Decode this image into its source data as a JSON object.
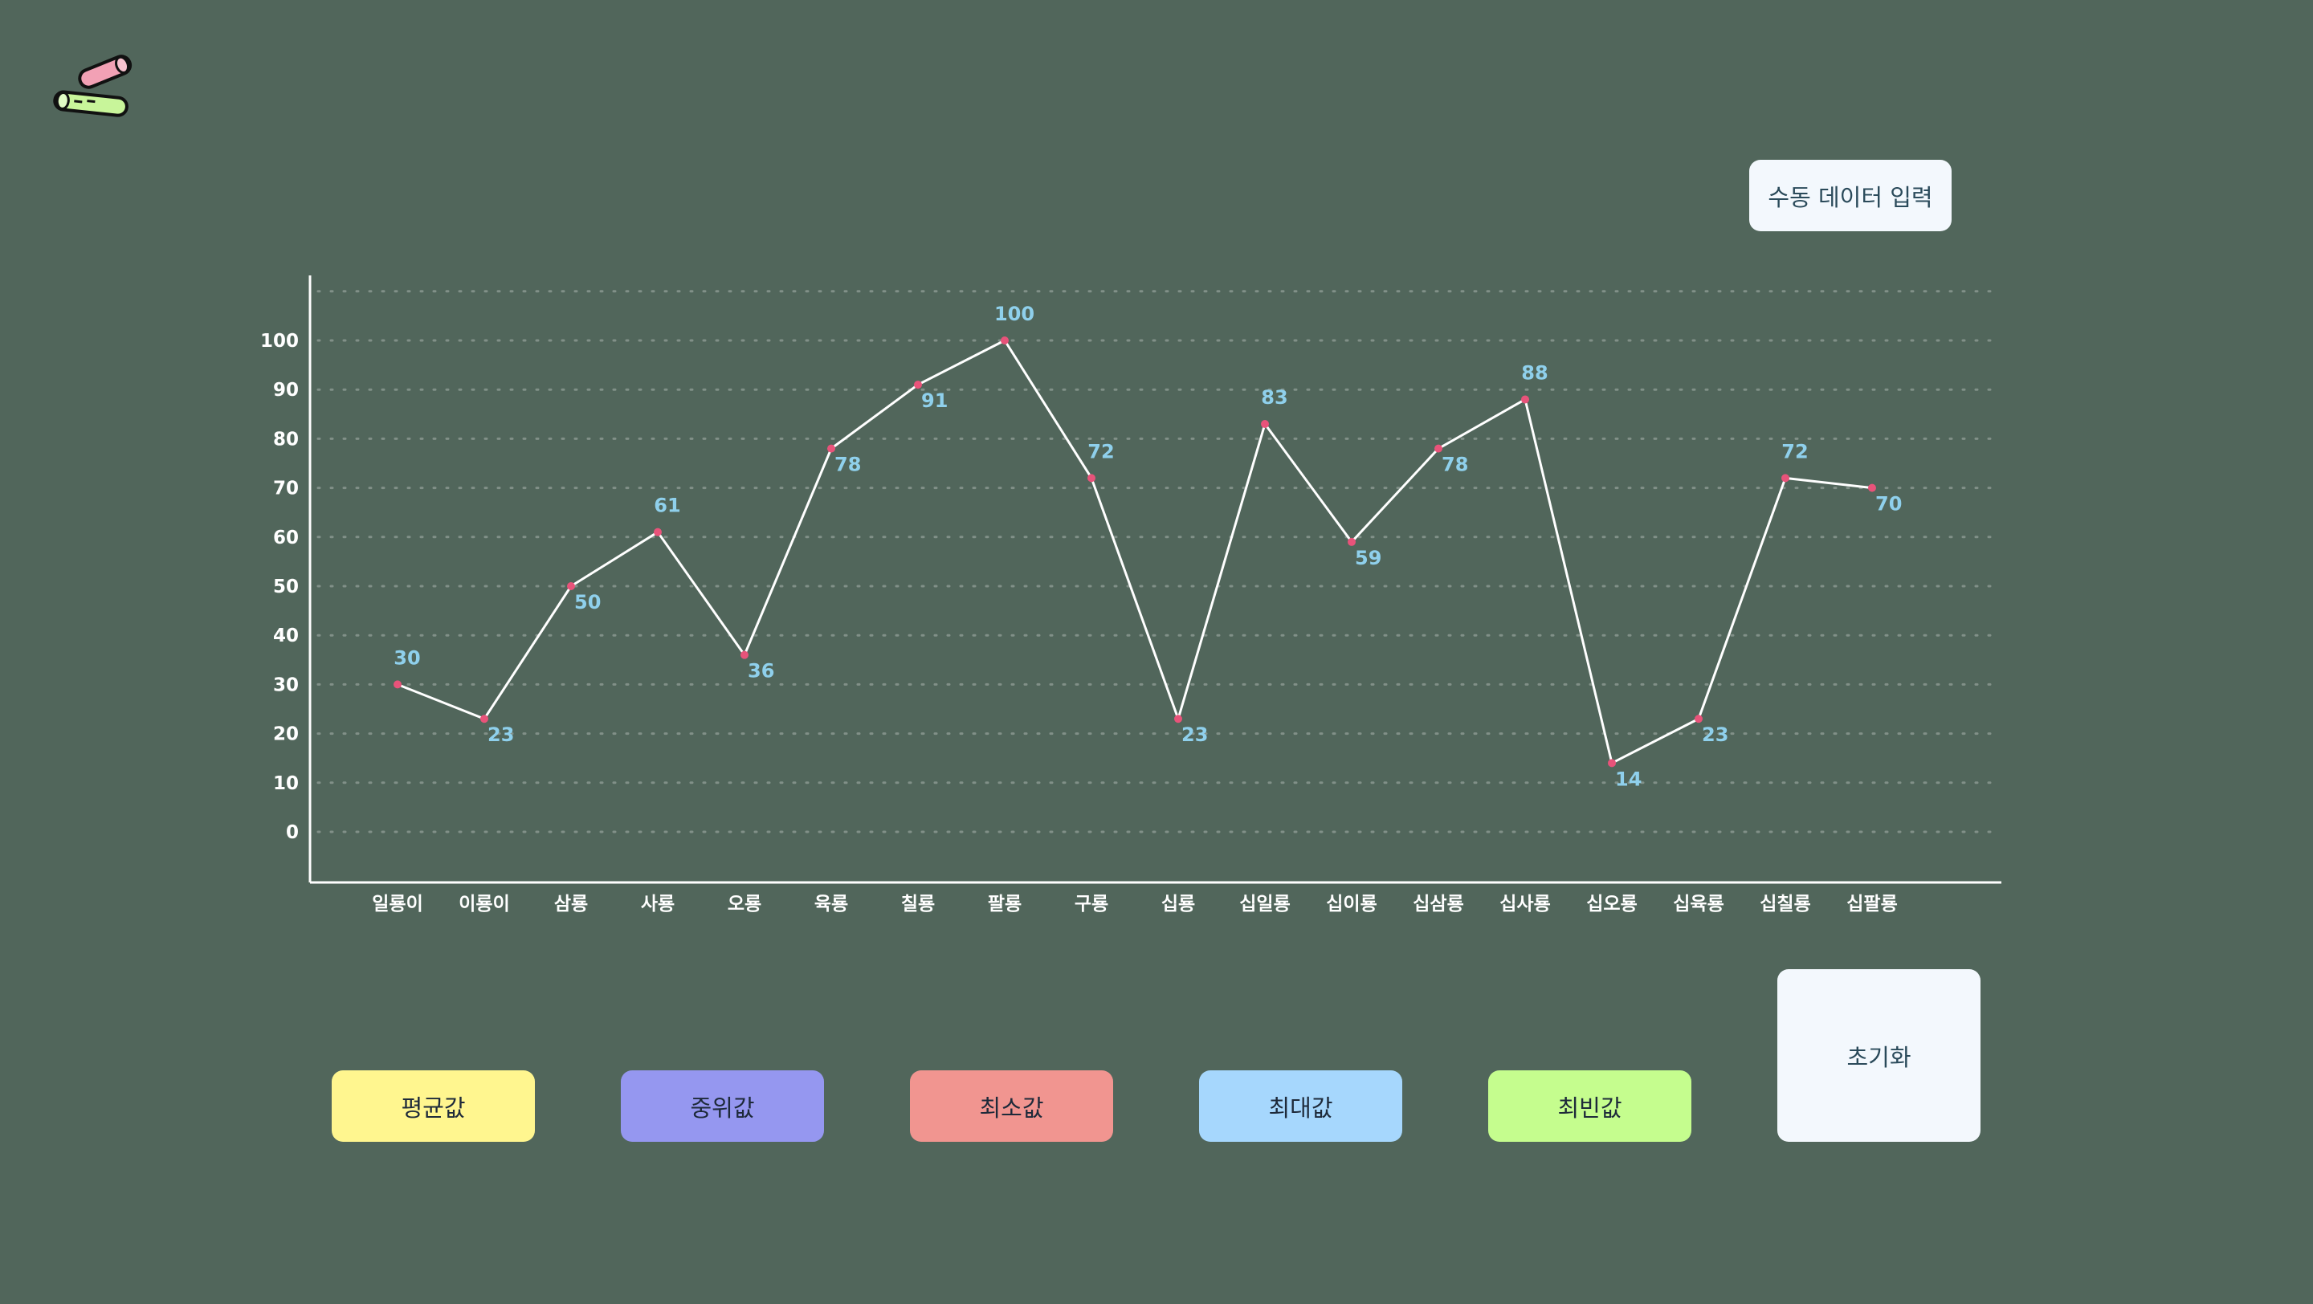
{
  "toolbar": {
    "manual_input_label": "수동 데이터 입력",
    "reset_label": "초기화"
  },
  "stats_buttons": [
    {
      "label": "평균값",
      "color": "#fff68f"
    },
    {
      "label": "중위값",
      "color": "#9597f0"
    },
    {
      "label": "최소값",
      "color": "#f19590"
    },
    {
      "label": "최대값",
      "color": "#a6d7fd"
    },
    {
      "label": "최빈값",
      "color": "#c5fd8e"
    }
  ],
  "logo": {
    "icon": "chalk-icon",
    "colors": [
      "#f2a1b5",
      "#c8f59a"
    ]
  },
  "chart_data": {
    "type": "line",
    "categories": [
      "일룡이",
      "이룡이",
      "삼룡",
      "사룡",
      "오룡",
      "육룡",
      "칠룡",
      "팔룡",
      "구룡",
      "십룡",
      "십일룡",
      "십이룡",
      "십삼룡",
      "십사룡",
      "십오룡",
      "십육룡",
      "십칠룡",
      "십팔룡"
    ],
    "values": [
      30,
      23,
      50,
      61,
      36,
      78,
      91,
      100,
      72,
      23,
      83,
      59,
      78,
      88,
      14,
      23,
      72,
      70
    ],
    "label_above": [
      true,
      false,
      false,
      true,
      false,
      false,
      false,
      true,
      true,
      false,
      true,
      false,
      false,
      true,
      false,
      false,
      true,
      false
    ],
    "ylim": [
      0,
      100
    ],
    "yticks": [
      0,
      10,
      20,
      30,
      40,
      50,
      60,
      70,
      80,
      90,
      100
    ],
    "grid": true,
    "line_color": "#ffffff",
    "point_color": "#e8537a",
    "label_color": "#8fd0ec"
  }
}
